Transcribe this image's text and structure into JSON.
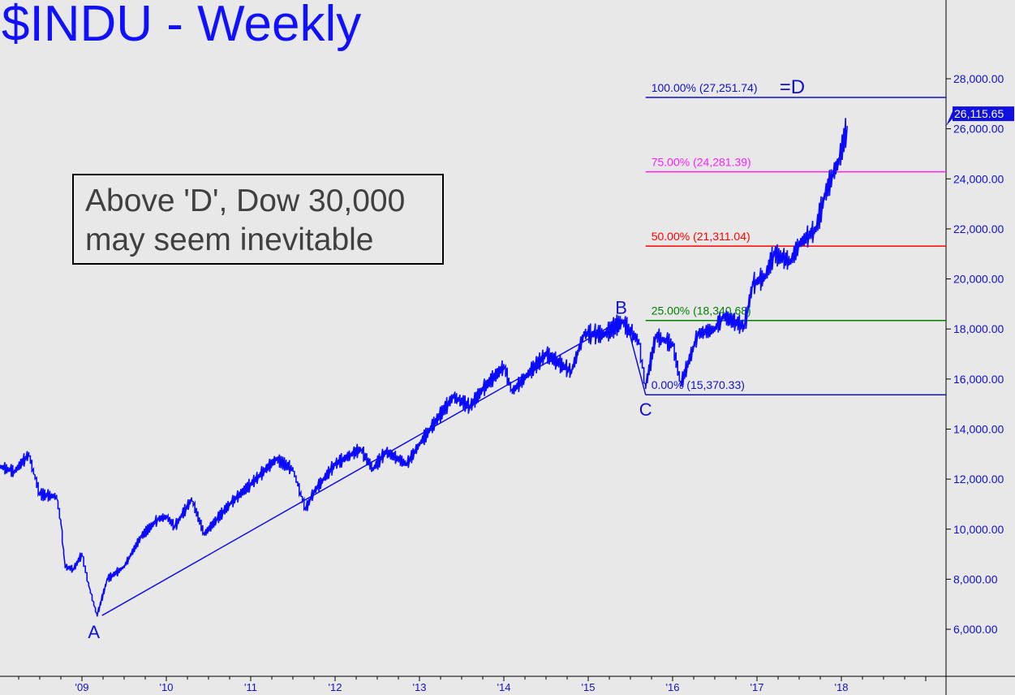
{
  "chart_data": {
    "type": "line",
    "title": "$INDU - Weekly",
    "annotation_box": [
      "Above 'D', Dow 30,000",
      "may seem inevitable"
    ],
    "xlabel": "",
    "ylabel": "",
    "xlim": [
      2008.03,
      2019.2
    ],
    "ylim": [
      5000,
      30500
    ],
    "x_tick_labels": [
      "'09",
      "'10",
      "'11",
      "'12",
      "'13",
      "'14",
      "'15",
      "'16",
      "'17",
      "'18"
    ],
    "x_tick_years": [
      2009,
      2010,
      2011,
      2012,
      2013,
      2014,
      2015,
      2016,
      2017,
      2018
    ],
    "y_tick_values": [
      6000,
      8000,
      10000,
      12000,
      14000,
      16000,
      18000,
      20000,
      22000,
      24000,
      26000,
      28000
    ],
    "y_tick_labels": [
      "6,000.00",
      "8,000.00",
      "10,000.00",
      "12,000.00",
      "14,000.00",
      "16,000.00",
      "18,000.00",
      "20,000.00",
      "22,000.00",
      "24,000.00",
      "26,000.00",
      "28,000.00"
    ],
    "last_price_label": "26,115.65",
    "last_price": 26115.65,
    "series": [
      {
        "name": "$INDU",
        "color": "#0a0aff",
        "x": [
          2008.03,
          2008.2,
          2008.37,
          2008.5,
          2008.7,
          2008.75,
          2008.8,
          2008.9,
          2009.0,
          2009.1,
          2009.18,
          2009.3,
          2009.5,
          2009.7,
          2009.9,
          2010.0,
          2010.1,
          2010.3,
          2010.45,
          2010.6,
          2010.75,
          2011.0,
          2011.3,
          2011.5,
          2011.65,
          2011.75,
          2012.0,
          2012.3,
          2012.45,
          2012.6,
          2012.85,
          2013.0,
          2013.4,
          2013.6,
          2013.75,
          2014.0,
          2014.1,
          2014.5,
          2014.8,
          2014.95,
          2015.2,
          2015.4,
          2015.6,
          2015.68,
          2015.8,
          2016.0,
          2016.1,
          2016.3,
          2016.5,
          2016.6,
          2016.85,
          2016.95,
          2017.1,
          2017.2,
          2017.4,
          2017.5,
          2017.7,
          2017.8,
          2017.9,
          2017.97,
          2018.07
        ],
        "y": [
          12500,
          12300,
          13000,
          11400,
          11300,
          10300,
          8500,
          8400,
          9000,
          7500,
          6550,
          8000,
          8500,
          9700,
          10400,
          10500,
          10100,
          11200,
          9800,
          10400,
          11000,
          11800,
          12800,
          12400,
          10800,
          11500,
          12600,
          13200,
          12400,
          13100,
          12600,
          13400,
          15300,
          14900,
          15600,
          16500,
          15500,
          17000,
          16300,
          17800,
          17800,
          18300,
          17500,
          15700,
          17700,
          17400,
          15800,
          17800,
          18000,
          18500,
          18100,
          19800,
          20100,
          21000,
          20700,
          21400,
          22000,
          23300,
          24200,
          24700,
          26115.65
        ]
      }
    ],
    "points": [
      {
        "label": "A",
        "x": 2009.18,
        "y": 6550
      },
      {
        "label": "B",
        "x": 2015.39,
        "y": 18350
      },
      {
        "label": "C",
        "x": 2015.68,
        "y": 15370.33
      }
    ],
    "wave_lines": [
      {
        "from": "A",
        "to": "B"
      },
      {
        "from": "B",
        "to": "C"
      }
    ],
    "fib_levels": [
      {
        "label": "100.00% (27,251.74)",
        "value": 27251.74,
        "color": "#1010d0",
        "suffix": "=D"
      },
      {
        "label": "75.00% (24,281.39)",
        "value": 24281.39,
        "color": "#ff20ff",
        "suffix": ""
      },
      {
        "label": "50.00% (21,311.04)",
        "value": 21311.04,
        "color": "#ff0000",
        "suffix": ""
      },
      {
        "label": "25.00% (18,340.68)",
        "value": 18340.68,
        "color": "#008000",
        "suffix": ""
      },
      {
        "label": "0.00% (15,370.33)",
        "value": 15370.33,
        "color": "#1010d0",
        "suffix": ""
      }
    ],
    "grid": false
  }
}
